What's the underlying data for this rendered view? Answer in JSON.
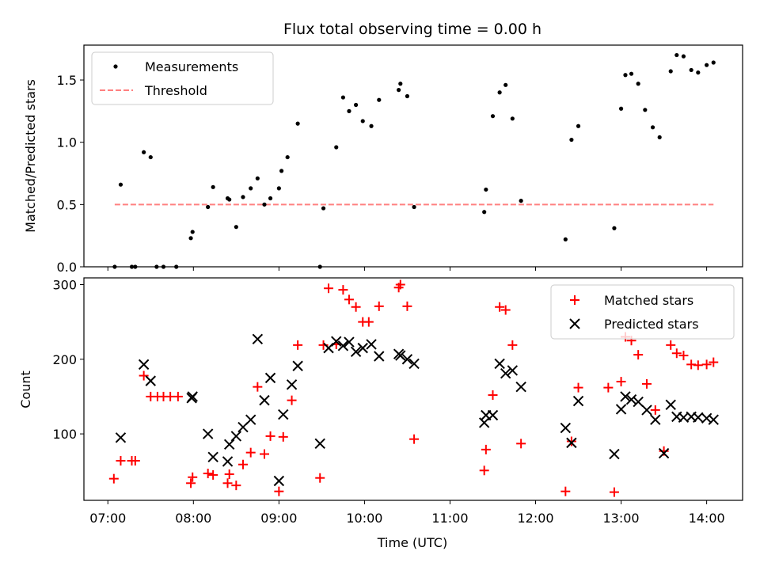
{
  "chart_data": [
    {
      "type": "scatter",
      "title": "Flux total observing time = 0.00 h",
      "xlabel": "",
      "ylabel": "Matched/Predicted stars",
      "ylim": [
        0,
        1.78
      ],
      "yticks": [
        "0.0",
        "0.5",
        "1.0",
        "1.5"
      ],
      "yticks_values": [
        0,
        0.5,
        1.0,
        1.5
      ],
      "xlim_hours": [
        6.72,
        14.42
      ],
      "legend": {
        "position": "top-left",
        "entries": [
          "Measurements",
          "Threshold"
        ]
      },
      "series": [
        {
          "name": "Measurements",
          "color": "#000000",
          "marker": "dot",
          "x": [
            7.08,
            7.15,
            7.28,
            7.32,
            7.42,
            7.5,
            7.57,
            7.65,
            7.8,
            7.97,
            7.99,
            8.17,
            8.23,
            8.4,
            8.42,
            8.5,
            8.58,
            8.67,
            8.75,
            8.83,
            8.9,
            9.0,
            9.03,
            9.1,
            9.22,
            9.48,
            9.52,
            9.67,
            9.75,
            9.82,
            9.9,
            9.98,
            10.08,
            10.17,
            10.4,
            10.42,
            10.5,
            10.58,
            11.4,
            11.42,
            11.5,
            11.58,
            11.65,
            11.73,
            11.83,
            12.35,
            12.42,
            12.5,
            12.92,
            13.0,
            13.05,
            13.12,
            13.2,
            13.28,
            13.37,
            13.45,
            13.58,
            13.65,
            13.73,
            13.82,
            13.9,
            14.0,
            14.08
          ],
          "y": [
            0.0,
            0.66,
            0.0,
            0.0,
            0.92,
            0.88,
            0.0,
            0.0,
            0.0,
            0.23,
            0.28,
            0.48,
            0.64,
            0.55,
            0.54,
            0.32,
            0.56,
            0.63,
            0.71,
            0.5,
            0.55,
            0.63,
            0.77,
            0.88,
            1.15,
            0.0,
            0.47,
            0.96,
            1.36,
            1.25,
            1.3,
            1.17,
            1.13,
            1.34,
            1.42,
            1.47,
            1.37,
            0.48,
            0.44,
            0.62,
            1.21,
            1.4,
            1.46,
            1.19,
            0.53,
            0.22,
            1.02,
            1.13,
            0.31,
            1.27,
            1.54,
            1.55,
            1.47,
            1.26,
            1.12,
            1.04,
            1.57,
            1.7,
            1.69,
            1.58,
            1.56,
            1.62,
            1.64
          ]
        },
        {
          "name": "Threshold",
          "color": "#ff8080",
          "style": "dashed",
          "x": [
            7.08,
            14.08
          ],
          "y": [
            0.5,
            0.5
          ]
        }
      ]
    },
    {
      "type": "scatter",
      "title": "",
      "xlabel": "Time (UTC)",
      "ylabel": "Count",
      "ylim": [
        11,
        309
      ],
      "yticks": [
        "100",
        "200",
        "300"
      ],
      "yticks_values": [
        100,
        200,
        300
      ],
      "xlim_hours": [
        6.72,
        14.42
      ],
      "xticks": [
        "07:00",
        "08:00",
        "09:00",
        "10:00",
        "11:00",
        "12:00",
        "13:00",
        "14:00"
      ],
      "xticks_values": [
        7,
        8,
        9,
        10,
        11,
        12,
        13,
        14
      ],
      "legend": {
        "position": "top-right",
        "entries": [
          "Matched stars",
          "Predicted stars"
        ]
      },
      "series": [
        {
          "name": "Matched stars",
          "color": "#ff0000",
          "marker": "plus",
          "x": [
            7.07,
            7.15,
            7.28,
            7.32,
            7.42,
            7.5,
            7.58,
            7.65,
            7.73,
            7.82,
            7.97,
            7.99,
            8.17,
            8.23,
            8.4,
            8.42,
            8.5,
            8.58,
            8.67,
            8.75,
            8.83,
            8.9,
            9.0,
            9.05,
            9.15,
            9.22,
            9.48,
            9.52,
            9.58,
            9.67,
            9.75,
            9.82,
            9.9,
            9.98,
            10.05,
            10.17,
            10.4,
            10.42,
            10.5,
            10.58,
            11.4,
            11.42,
            11.5,
            11.58,
            11.65,
            11.73,
            11.83,
            12.35,
            12.42,
            12.5,
            12.85,
            12.92,
            13.0,
            13.05,
            13.12,
            13.2,
            13.3,
            13.4,
            13.5,
            13.58,
            13.65,
            13.73,
            13.82,
            13.9,
            14.0,
            14.08
          ],
          "y": [
            40,
            64,
            64,
            64,
            178,
            150,
            150,
            150,
            150,
            150,
            34,
            42,
            47,
            45,
            34,
            46,
            31,
            59,
            75,
            163,
            73,
            97,
            23,
            96,
            145,
            219,
            41,
            219,
            295,
            220,
            293,
            280,
            270,
            250,
            250,
            271,
            296,
            300,
            271,
            93,
            51,
            79,
            152,
            270,
            266,
            219,
            87,
            23,
            90,
            162,
            162,
            22,
            170,
            230,
            225,
            206,
            167,
            132,
            77,
            219,
            208,
            205,
            193,
            192,
            193,
            196
          ]
        },
        {
          "name": "Predicted stars",
          "color": "#000000",
          "marker": "x",
          "x": [
            7.15,
            7.42,
            7.5,
            7.98,
            7.99,
            8.17,
            8.23,
            8.4,
            8.42,
            8.5,
            8.58,
            8.67,
            8.75,
            8.83,
            8.9,
            9.0,
            9.05,
            9.15,
            9.22,
            9.48,
            9.58,
            9.67,
            9.75,
            9.82,
            9.9,
            9.98,
            10.08,
            10.17,
            10.4,
            10.42,
            10.5,
            10.58,
            11.4,
            11.42,
            11.5,
            11.58,
            11.65,
            11.73,
            11.83,
            12.35,
            12.42,
            12.5,
            12.92,
            13.0,
            13.05,
            13.12,
            13.2,
            13.3,
            13.4,
            13.5,
            13.58,
            13.65,
            13.73,
            13.82,
            13.9,
            14.0,
            14.08
          ],
          "y": [
            95,
            193,
            171,
            148,
            150,
            100,
            69,
            63,
            86,
            97,
            109,
            119,
            227,
            145,
            175,
            37,
            126,
            166,
            191,
            87,
            215,
            224,
            218,
            223,
            210,
            215,
            220,
            204,
            207,
            205,
            200,
            194,
            115,
            125,
            125,
            194,
            181,
            185,
            163,
            108,
            88,
            144,
            73,
            133,
            150,
            146,
            143,
            132,
            119,
            74,
            139,
            123,
            122,
            123,
            122,
            121,
            119
          ]
        }
      ]
    }
  ]
}
